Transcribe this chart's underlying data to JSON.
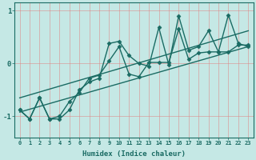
{
  "xlabel": "Humidex (Indice chaleur)",
  "ylabel": "",
  "background_color": "#c5e8e5",
  "line_color": "#1a6b63",
  "grid_color": "#e08080",
  "xlim": [
    -0.5,
    23.5
  ],
  "ylim": [
    -1.4,
    1.15
  ],
  "yticks": [
    -1,
    0,
    1
  ],
  "xticks": [
    0,
    1,
    2,
    3,
    4,
    5,
    6,
    7,
    8,
    9,
    10,
    11,
    12,
    13,
    14,
    15,
    16,
    17,
    18,
    19,
    20,
    21,
    22,
    23
  ],
  "lines": [
    {
      "x": [
        0,
        1,
        2,
        3,
        4,
        5,
        6,
        7,
        8,
        9,
        10,
        11,
        12,
        13,
        14,
        15,
        16,
        17,
        18,
        19,
        20,
        21,
        22,
        23
      ],
      "y": [
        -0.88,
        -1.05,
        -0.65,
        -1.05,
        -1.0,
        -0.72,
        -0.55,
        -0.28,
        -0.22,
        0.05,
        0.32,
        -0.2,
        -0.25,
        0.02,
        0.02,
        0.02,
        0.65,
        0.08,
        0.2,
        0.22,
        0.22,
        0.22,
        0.35,
        0.35
      ],
      "marker": "D",
      "markersize": 2.5,
      "linewidth": 1.0,
      "has_marker": true
    },
    {
      "x": [
        0,
        1,
        2,
        3,
        4,
        5,
        6,
        7,
        8,
        9,
        10,
        11,
        12,
        13,
        14,
        15,
        16,
        17,
        18,
        19,
        20,
        21,
        22,
        23
      ],
      "y": [
        -0.88,
        -1.05,
        -0.65,
        -1.05,
        -1.05,
        -0.88,
        -0.5,
        -0.35,
        -0.28,
        0.38,
        0.42,
        0.15,
        0.0,
        -0.05,
        0.68,
        -0.02,
        0.9,
        0.25,
        0.32,
        0.62,
        0.22,
        0.92,
        0.38,
        0.32
      ],
      "marker": "D",
      "markersize": 2.5,
      "linewidth": 1.0,
      "has_marker": true
    },
    {
      "x": [
        0,
        23
      ],
      "y": [
        -0.92,
        0.32
      ],
      "marker": null,
      "markersize": 0,
      "linewidth": 1.0,
      "has_marker": false
    },
    {
      "x": [
        0,
        23
      ],
      "y": [
        -0.65,
        0.62
      ],
      "marker": null,
      "markersize": 0,
      "linewidth": 1.0,
      "has_marker": false
    }
  ]
}
